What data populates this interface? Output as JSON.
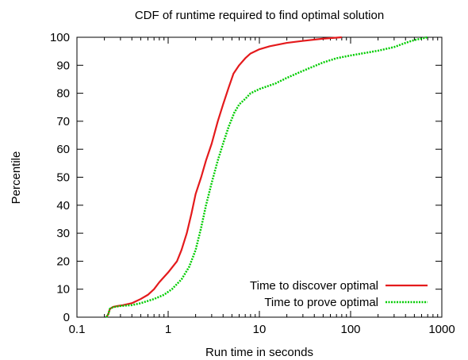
{
  "chart_data": {
    "type": "line",
    "title": "CDF of runtime required to find optimal solution",
    "xlabel": "Run time in seconds",
    "ylabel": "Percentile",
    "xscale": "log",
    "xlim": [
      0.1,
      1000
    ],
    "ylim": [
      0,
      100
    ],
    "xticks": [
      {
        "value": 0.1,
        "label": "0.1"
      },
      {
        "value": 1,
        "label": "1"
      },
      {
        "value": 10,
        "label": "10"
      },
      {
        "value": 100,
        "label": "100"
      },
      {
        "value": 1000,
        "label": "1000"
      }
    ],
    "yticks": [
      0,
      10,
      20,
      30,
      40,
      50,
      60,
      70,
      80,
      90,
      100
    ],
    "grid": false,
    "legend_position": "bottom-right",
    "series": [
      {
        "name": "Time to discover optimal",
        "color": "#e41a1c",
        "style": "solid",
        "points": [
          [
            0.21,
            0
          ],
          [
            0.22,
            1
          ],
          [
            0.23,
            3
          ],
          [
            0.25,
            3.7
          ],
          [
            0.28,
            4
          ],
          [
            0.32,
            4.3
          ],
          [
            0.4,
            5
          ],
          [
            0.5,
            6.5
          ],
          [
            0.6,
            8
          ],
          [
            0.7,
            10
          ],
          [
            0.8,
            12.5
          ],
          [
            1.0,
            16
          ],
          [
            1.25,
            20
          ],
          [
            1.4,
            24
          ],
          [
            1.6,
            30
          ],
          [
            1.8,
            37
          ],
          [
            2.0,
            44
          ],
          [
            2.3,
            50
          ],
          [
            2.6,
            56
          ],
          [
            3.0,
            62
          ],
          [
            3.5,
            70
          ],
          [
            4.0,
            76
          ],
          [
            4.6,
            82
          ],
          [
            5.2,
            87
          ],
          [
            6.0,
            90
          ],
          [
            7.0,
            92.5
          ],
          [
            8.0,
            94.2
          ],
          [
            10,
            95.7
          ],
          [
            13,
            96.8
          ],
          [
            20,
            98
          ],
          [
            30,
            98.7
          ],
          [
            50,
            99.5
          ],
          [
            80,
            100
          ]
        ]
      },
      {
        "name": "Time to prove optimal",
        "color": "#00cc00",
        "style": "dotted",
        "points": [
          [
            0.21,
            0
          ],
          [
            0.22,
            1
          ],
          [
            0.23,
            3
          ],
          [
            0.25,
            3.6
          ],
          [
            0.3,
            4
          ],
          [
            0.4,
            4.3
          ],
          [
            0.5,
            5
          ],
          [
            0.7,
            6.5
          ],
          [
            0.9,
            8
          ],
          [
            1.1,
            10
          ],
          [
            1.4,
            13.5
          ],
          [
            1.7,
            18
          ],
          [
            2.0,
            24
          ],
          [
            2.3,
            32
          ],
          [
            2.6,
            40
          ],
          [
            3.0,
            48
          ],
          [
            3.5,
            56
          ],
          [
            4.0,
            62
          ],
          [
            4.6,
            68
          ],
          [
            5.3,
            73
          ],
          [
            6.0,
            76
          ],
          [
            7.0,
            78
          ],
          [
            8.0,
            80
          ],
          [
            10,
            81.5
          ],
          [
            15,
            83.5
          ],
          [
            20,
            85.5
          ],
          [
            30,
            88
          ],
          [
            50,
            91
          ],
          [
            70,
            92.5
          ],
          [
            100,
            93.5
          ],
          [
            150,
            94.5
          ],
          [
            200,
            95.2
          ],
          [
            300,
            96.5
          ],
          [
            400,
            98
          ],
          [
            500,
            99
          ],
          [
            700,
            100
          ]
        ]
      }
    ]
  }
}
